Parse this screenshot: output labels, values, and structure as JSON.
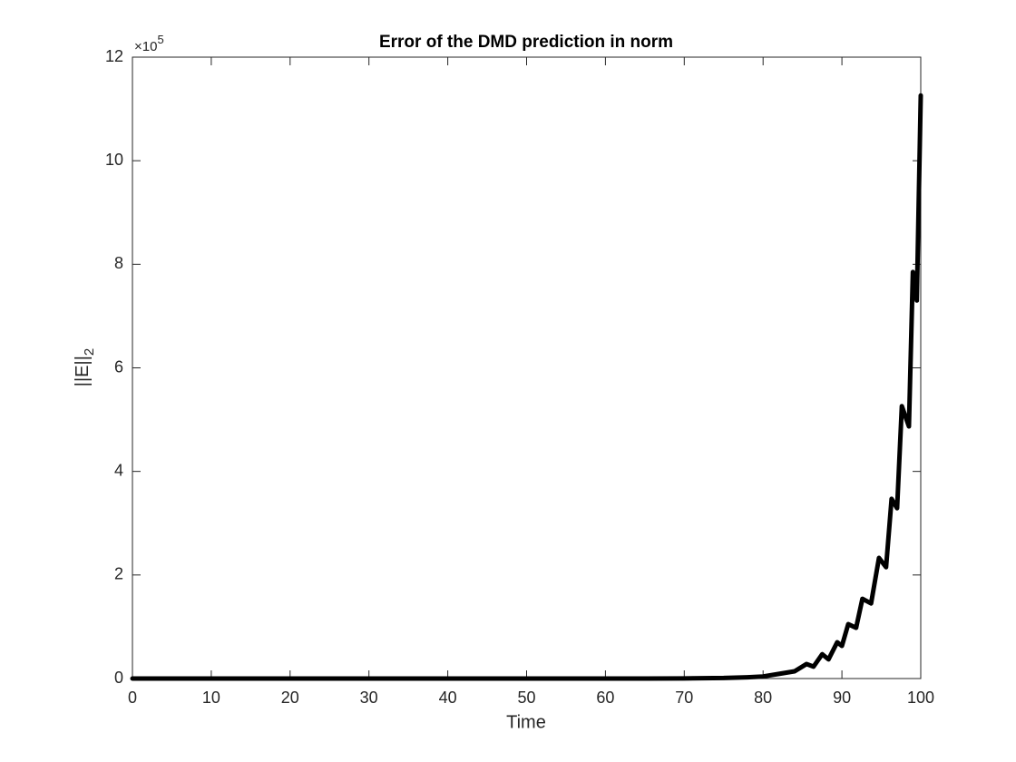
{
  "chart_data": {
    "type": "line",
    "title": "Error of the DMD prediction in norm",
    "x_label": "Time",
    "y_label": "||E||",
    "y_label_subscript": "2",
    "y_multiplier": "×10",
    "y_multiplier_exponent": "5",
    "x": [
      0,
      10,
      20,
      30,
      40,
      50,
      60,
      65,
      70,
      75,
      78,
      80,
      82,
      84,
      85.5,
      86.4,
      87.5,
      88.3,
      89.4,
      90,
      90.8,
      91.8,
      92.6,
      93.7,
      94.7,
      95.6,
      96.3,
      97,
      97.6,
      98.5,
      99,
      99.5,
      100
    ],
    "values": [
      0,
      0,
      0,
      0,
      0,
      0,
      0,
      0.001,
      0.003,
      0.01,
      0.025,
      0.04,
      0.09,
      0.14,
      0.28,
      0.23,
      0.47,
      0.37,
      0.7,
      0.63,
      1.05,
      0.98,
      1.54,
      1.45,
      2.33,
      2.15,
      3.47,
      3.29,
      5.26,
      4.87,
      7.85,
      7.3,
      11.26
    ],
    "color": "#000000",
    "xlim": [
      0,
      100
    ],
    "xticks": [
      0,
      10,
      20,
      30,
      40,
      50,
      60,
      70,
      80,
      90,
      100
    ],
    "ylim": [
      0,
      12
    ],
    "yticks": [
      0,
      2,
      4,
      6,
      8,
      10,
      12
    ],
    "grid": false
  }
}
